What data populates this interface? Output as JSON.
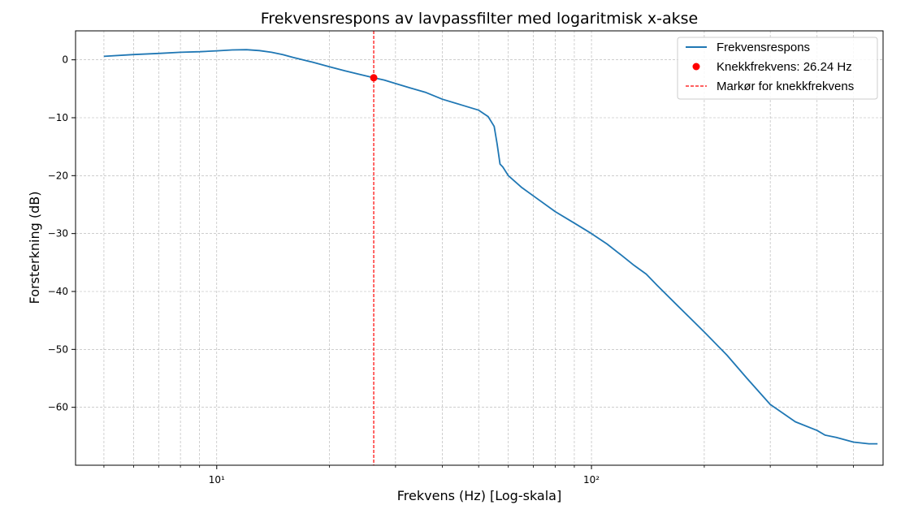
{
  "chart_data": {
    "type": "line",
    "title": "Frekvensrespons av lavpassfilter med logaritmisk x-akse",
    "xlabel": "Frekvens (Hz) [Log-skala]",
    "ylabel": "Forsterkning (dB)",
    "xscale": "log",
    "xlim": [
      4.2,
      600
    ],
    "ylim": [
      -70,
      5
    ],
    "x_major_ticks": [
      {
        "value": 10,
        "label": "10¹"
      },
      {
        "value": 100,
        "label": "10²"
      }
    ],
    "x_minor_ticks": [
      5,
      6,
      7,
      8,
      9,
      20,
      30,
      40,
      50,
      60,
      70,
      80,
      90,
      200,
      300,
      400,
      500
    ],
    "y_ticks": [
      {
        "value": 0,
        "label": "0"
      },
      {
        "value": -10,
        "label": "−10"
      },
      {
        "value": -20,
        "label": "−20"
      },
      {
        "value": -30,
        "label": "−30"
      },
      {
        "value": -40,
        "label": "−40"
      },
      {
        "value": -50,
        "label": "−50"
      },
      {
        "value": -60,
        "label": "−60"
      }
    ],
    "grid": true,
    "legend_position": "top-right",
    "series": [
      {
        "name": "Frekvensrespons",
        "kind": "line",
        "color": "#1f77b4",
        "x": [
          5,
          6,
          7,
          8,
          9,
          10,
          11,
          12,
          13,
          14,
          15,
          16,
          18,
          20,
          22,
          24,
          26.24,
          28,
          30,
          33,
          36,
          40,
          45,
          50,
          53,
          55,
          56,
          57,
          58,
          60,
          65,
          70,
          80,
          90,
          100,
          110,
          120,
          130,
          140,
          150,
          170,
          200,
          230,
          260,
          300,
          350,
          400,
          420,
          450,
          500,
          550,
          580
        ],
        "y": [
          0.6,
          0.9,
          1.1,
          1.3,
          1.4,
          1.55,
          1.7,
          1.75,
          1.6,
          1.3,
          0.9,
          0.4,
          -0.4,
          -1.2,
          -1.9,
          -2.5,
          -3.1,
          -3.5,
          -4.1,
          -4.9,
          -5.6,
          -6.8,
          -7.8,
          -8.7,
          -9.8,
          -11.5,
          -14.5,
          -18,
          -18.5,
          -20,
          -22,
          -23.5,
          -26.2,
          -28.2,
          -30,
          -31.8,
          -33.7,
          -35.5,
          -37,
          -39,
          -42.5,
          -47,
          -51,
          -55,
          -59.5,
          -62.5,
          -64,
          -64.8,
          -65.2,
          -66,
          -66.3,
          -66.3
        ]
      },
      {
        "name": "Knekkfrekvens: 26.24 Hz",
        "kind": "point",
        "color": "#ff0000",
        "x": [
          26.24
        ],
        "y": [
          -3.1
        ]
      },
      {
        "name": "Markør for knekkfrekvens",
        "kind": "vline",
        "color": "#ff0000",
        "x": [
          26.24
        ]
      }
    ]
  }
}
